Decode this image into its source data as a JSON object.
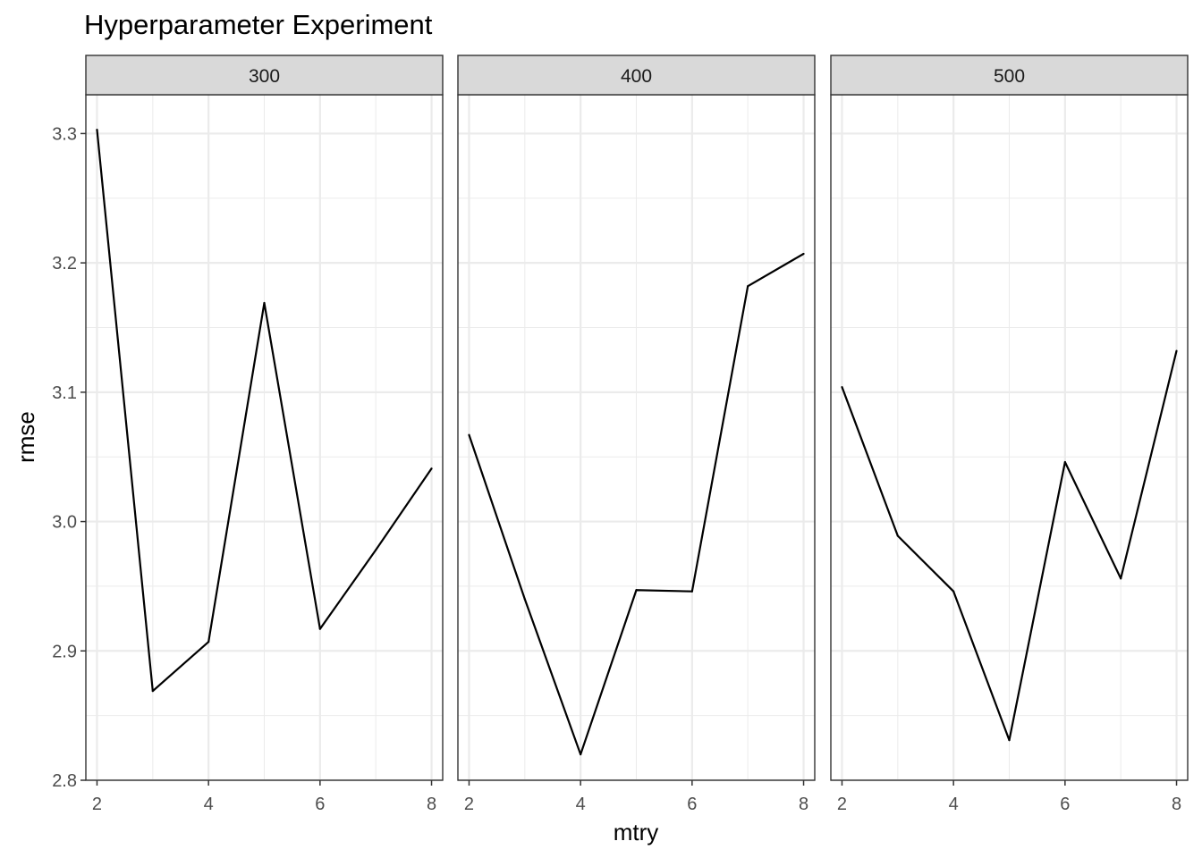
{
  "chart_data": {
    "type": "line",
    "title": "Hyperparameter Experiment",
    "xlabel": "mtry",
    "ylabel": "rmse",
    "xlim": [
      1.8,
      8.2
    ],
    "ylim": [
      2.8,
      3.33
    ],
    "x_ticks": [
      2,
      4,
      6,
      8
    ],
    "y_ticks": [
      2.8,
      2.9,
      3.0,
      3.1,
      3.2,
      3.3
    ],
    "x_tick_labels": [
      "2",
      "4",
      "6",
      "8"
    ],
    "y_tick_labels": [
      "2.8",
      "2.9",
      "3.0",
      "3.1",
      "3.2",
      "3.3"
    ],
    "grid": true,
    "line_color": "#000000",
    "strip_fill": "#d9d9d9",
    "grid_color": "#ebebeb",
    "facets": [
      {
        "label": "300",
        "x": [
          2,
          3,
          4,
          5,
          6,
          7,
          8
        ],
        "y": [
          3.303,
          2.869,
          2.907,
          3.169,
          2.917,
          2.978,
          3.041
        ]
      },
      {
        "label": "400",
        "x": [
          2,
          3,
          4,
          5,
          6,
          7,
          8
        ],
        "y": [
          3.067,
          2.94,
          2.82,
          2.947,
          2.946,
          3.182,
          3.207
        ]
      },
      {
        "label": "500",
        "x": [
          2,
          3,
          4,
          5,
          6,
          7,
          8
        ],
        "y": [
          3.104,
          2.989,
          2.946,
          2.831,
          3.046,
          2.956,
          3.132
        ]
      }
    ]
  }
}
